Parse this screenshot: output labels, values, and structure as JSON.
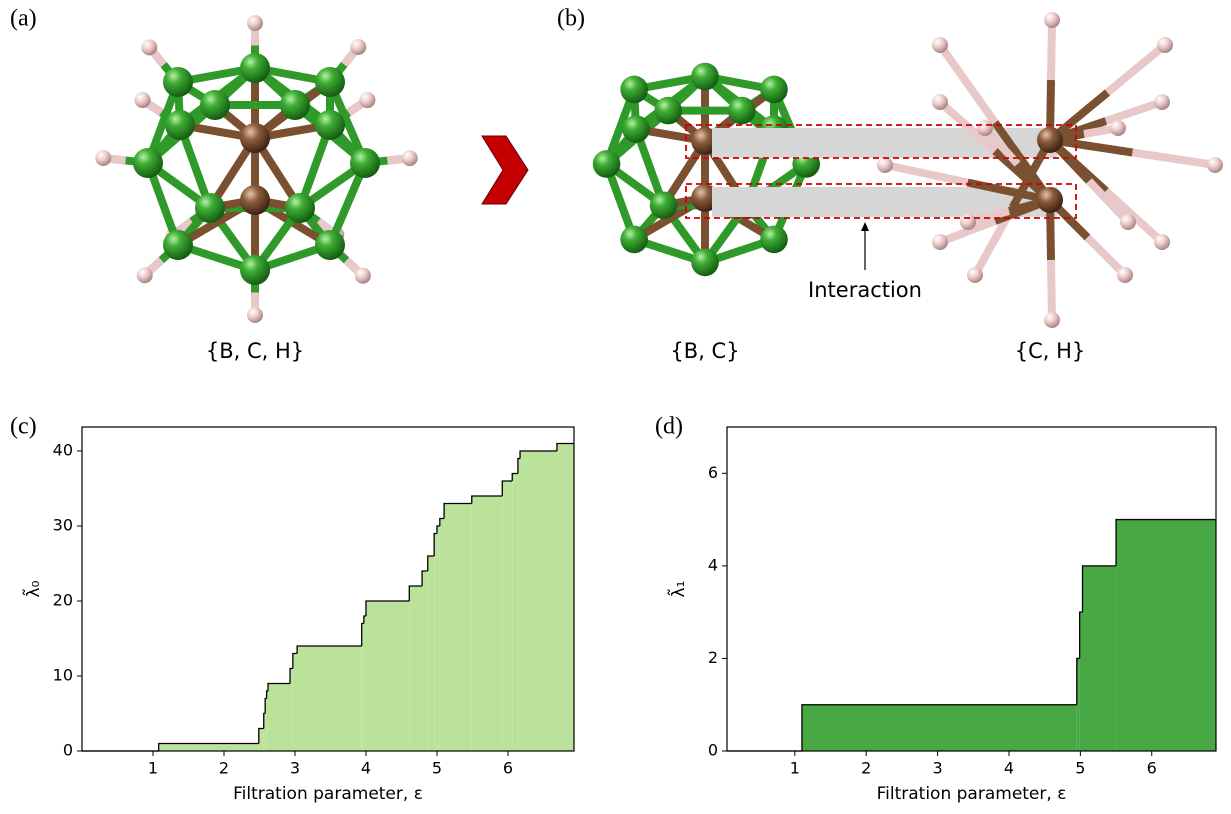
{
  "panels": {
    "a": {
      "label": "(a)",
      "caption": "{B, C, H}"
    },
    "b": {
      "label": "(b)",
      "captions": [
        "{B, C}",
        "{C, H}"
      ],
      "annotation": "Interaction"
    },
    "c": {
      "label": "(c)"
    },
    "d": {
      "label": "(d)"
    }
  },
  "chart_data": [
    {
      "type": "step",
      "x_label": "Filtration parameter, ε",
      "y_label": "λ̃₀",
      "color": "#bbe29a",
      "x": [
        0,
        1.08,
        2.49,
        2.56,
        2.58,
        2.6,
        2.62,
        2.93,
        2.97,
        3.03,
        3.94,
        3.97,
        4.0,
        4.61,
        4.79,
        4.87,
        4.96,
        5.0,
        5.04,
        5.1,
        5.49,
        5.92,
        6.06,
        6.14,
        6.17,
        6.69
      ],
      "values": [
        0,
        1,
        3,
        5,
        7,
        8,
        9,
        11,
        13,
        14,
        17,
        18,
        20,
        22,
        24,
        26,
        29,
        30,
        31,
        33,
        34,
        36,
        37,
        39,
        40,
        41
      ],
      "xlim": [
        0,
        6.93
      ],
      "ylim": [
        0,
        43.2
      ],
      "xticks": [
        1,
        2,
        3,
        4,
        5,
        6
      ],
      "yticks": [
        0,
        10,
        20,
        30,
        40
      ]
    },
    {
      "type": "step",
      "x_label": "Filtration parameter, ε",
      "y_label": "λ̃₁",
      "color": "#48a844",
      "x": [
        0.05,
        1.1,
        4.95,
        4.99,
        5.03,
        5.5
      ],
      "values": [
        0,
        1,
        2,
        3,
        4,
        5
      ],
      "xlim": [
        0.05,
        6.9
      ],
      "ylim": [
        0,
        7
      ],
      "xticks": [
        1,
        2,
        3,
        4,
        5,
        6
      ],
      "yticks": [
        0,
        2,
        4,
        6
      ]
    }
  ]
}
